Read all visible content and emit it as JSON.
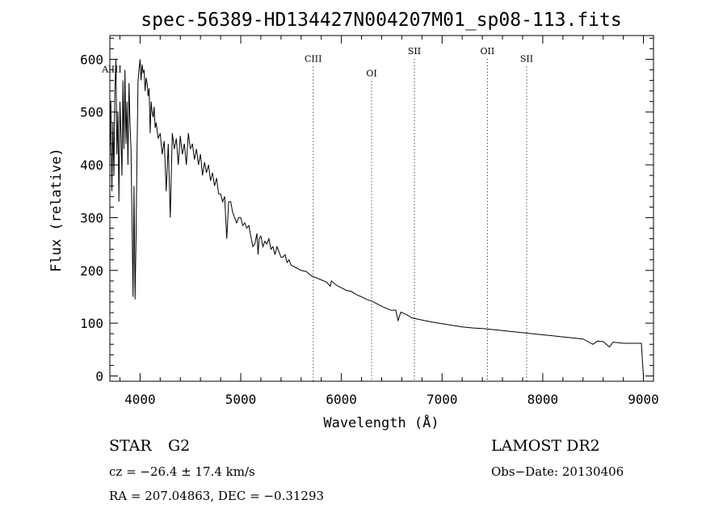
{
  "chart_data": {
    "type": "line",
    "title": "spec-56389-HD134427N004207M01_sp08-113.fits",
    "xlabel": "Wavelength (Å)",
    "ylabel": "Flux (relative)",
    "xlim": [
      3700,
      9100
    ],
    "ylim": [
      -10,
      645
    ],
    "xticks": [
      4000,
      5000,
      6000,
      7000,
      8000,
      9000
    ],
    "yticks": [
      0,
      100,
      200,
      300,
      400,
      500,
      600
    ],
    "grid": false,
    "series": [
      {
        "x": [
          3700,
          3710,
          3720,
          3730,
          3740,
          3750,
          3760,
          3770,
          3780,
          3790,
          3800,
          3810,
          3820,
          3830,
          3840,
          3850,
          3860,
          3870,
          3880,
          3890,
          3900,
          3910,
          3920,
          3930,
          3940,
          3950,
          3960,
          3970,
          3980,
          3990,
          4000,
          4010,
          4020,
          4030,
          4040,
          4050,
          4060,
          4070,
          4080,
          4090,
          4100,
          4110,
          4120,
          4130,
          4140,
          4150,
          4160,
          4180,
          4200,
          4220,
          4240,
          4260,
          4280,
          4300,
          4320,
          4340,
          4360,
          4380,
          4400,
          4420,
          4440,
          4460,
          4480,
          4500,
          4520,
          4540,
          4560,
          4580,
          4600,
          4620,
          4640,
          4660,
          4680,
          4700,
          4720,
          4740,
          4760,
          4780,
          4800,
          4820,
          4840,
          4861,
          4880,
          4900,
          4920,
          4940,
          4960,
          4980,
          5000,
          5020,
          5040,
          5060,
          5080,
          5100,
          5120,
          5140,
          5160,
          5172,
          5183,
          5200,
          5220,
          5240,
          5260,
          5280,
          5300,
          5320,
          5340,
          5360,
          5380,
          5400,
          5420,
          5440,
          5460,
          5480,
          5500,
          5550,
          5600,
          5650,
          5700,
          5750,
          5800,
          5850,
          5890,
          5900,
          5950,
          6000,
          6050,
          6100,
          6150,
          6200,
          6250,
          6300,
          6350,
          6400,
          6450,
          6500,
          6540,
          6563,
          6590,
          6650,
          6700,
          6800,
          6900,
          7000,
          7100,
          7200,
          7300,
          7400,
          7500,
          7600,
          7700,
          7800,
          7900,
          8000,
          8100,
          8200,
          8300,
          8400,
          8498,
          8542,
          8600,
          8662,
          8700,
          8800,
          8900,
          8950,
          8980,
          9000
        ],
        "y": [
          410,
          520,
          350,
          480,
          380,
          540,
          600,
          420,
          500,
          330,
          520,
          460,
          380,
          560,
          430,
          580,
          440,
          520,
          400,
          555,
          480,
          430,
          300,
          150,
          360,
          145,
          260,
          430,
          560,
          580,
          600,
          560,
          590,
          575,
          580,
          540,
          565,
          555,
          530,
          545,
          460,
          520,
          500,
          490,
          510,
          470,
          480,
          450,
          460,
          420,
          445,
          350,
          440,
          300,
          460,
          430,
          450,
          400,
          455,
          420,
          440,
          400,
          460,
          430,
          440,
          410,
          430,
          400,
          420,
          380,
          405,
          385,
          400,
          370,
          385,
          360,
          375,
          345,
          345,
          330,
          340,
          260,
          330,
          330,
          310,
          300,
          290,
          300,
          300,
          285,
          290,
          280,
          285,
          265,
          245,
          250,
          270,
          230,
          260,
          265,
          245,
          255,
          250,
          260,
          240,
          245,
          230,
          245,
          235,
          225,
          225,
          230,
          215,
          220,
          210,
          205,
          200,
          198,
          190,
          186,
          182,
          178,
          170,
          180,
          172,
          167,
          162,
          160,
          154,
          150,
          145,
          142,
          137,
          132,
          128,
          124,
          125,
          105,
          121,
          116,
          110,
          106,
          102,
          99,
          96,
          93,
          91,
          90,
          88,
          86,
          84,
          82,
          80,
          78,
          76,
          74,
          72,
          70,
          60,
          66,
          65,
          55,
          64,
          62,
          62,
          62,
          62,
          0
        ]
      }
    ],
    "annotations": [
      {
        "label": "AlIII",
        "x": 3720,
        "top": 575,
        "line": false
      },
      {
        "label": "CIII",
        "x": 5720,
        "top": 595,
        "line": true
      },
      {
        "label": "OI",
        "x": 6300,
        "top": 568,
        "line": true
      },
      {
        "label": "SII",
        "x": 6725,
        "top": 610,
        "line": true
      },
      {
        "label": "OII",
        "x": 7450,
        "top": 610,
        "line": true
      },
      {
        "label": "SII",
        "x": 7840,
        "top": 595,
        "line": true
      }
    ]
  },
  "info": {
    "object_class": "STAR",
    "subclass": "G2",
    "survey": "LAMOST DR2",
    "cz": "cz = −26.4 ± 17.4 km/s",
    "obs_date": "Obs−Date: 20130406",
    "coords": "RA = 207.04863, DEC =  −0.31293"
  }
}
